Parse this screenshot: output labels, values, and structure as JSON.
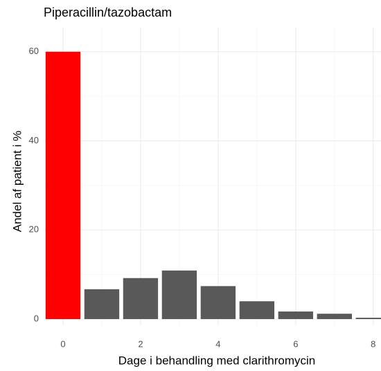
{
  "chart_data": {
    "type": "bar",
    "title": "Piperacillin/tazobactam",
    "xlabel": "Dage i behandling med clarithromycin",
    "ylabel": "Andel af patient i %",
    "x": [
      0,
      1,
      2,
      3,
      4,
      5,
      6,
      7,
      8
    ],
    "values": [
      60,
      6.7,
      9.2,
      10.9,
      7.4,
      4.0,
      1.7,
      1.2,
      0.3
    ],
    "colors": [
      "#ff0000",
      "#595959",
      "#595959",
      "#595959",
      "#595959",
      "#595959",
      "#595959",
      "#595959",
      "#595959"
    ],
    "bar_width": 0.9,
    "xlim": [
      -0.5,
      8.2
    ],
    "ylim": [
      -1.4,
      65.4
    ],
    "xticks": [
      0,
      2,
      4,
      6,
      8
    ],
    "yticks": [
      0,
      20,
      40,
      60
    ],
    "grid": true
  }
}
